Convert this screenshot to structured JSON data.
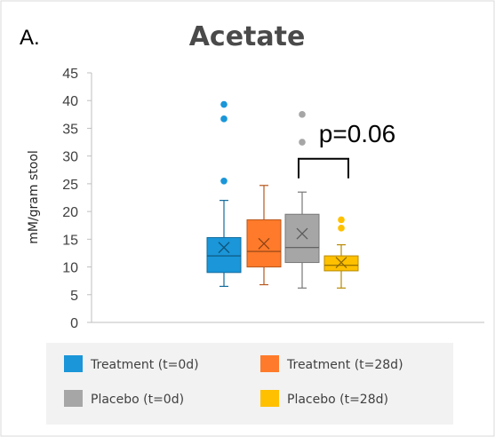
{
  "panel_label": "A.",
  "chart_data": {
    "type": "box",
    "title": "Acetate",
    "ylabel": "mM/gram stool",
    "xlabel": "",
    "ylim": [
      0,
      45
    ],
    "yticks": [
      0,
      5,
      10,
      15,
      20,
      25,
      30,
      35,
      40,
      45
    ],
    "grid": false,
    "legend_position": "bottom",
    "series": [
      {
        "name": "Treatment (t=0d)",
        "color": "#1a96d9",
        "min": 6.5,
        "q1": 9.0,
        "median": 12.0,
        "q3": 15.3,
        "max": 22.0,
        "mean": 13.5,
        "outliers": [
          39.3,
          36.7,
          25.5
        ]
      },
      {
        "name": "Treatment (t=28d)",
        "color": "#ff7a2a",
        "min": 6.8,
        "q1": 10.0,
        "median": 12.8,
        "q3": 18.5,
        "max": 24.7,
        "mean": 14.2,
        "outliers": []
      },
      {
        "name": "Placebo (t=0d)",
        "color": "#a6a6a6",
        "min": 6.2,
        "q1": 10.8,
        "median": 13.5,
        "q3": 19.5,
        "max": 23.5,
        "mean": 16.0,
        "outliers": [
          37.5,
          32.5
        ]
      },
      {
        "name": "Placebo (t=28d)",
        "color": "#ffc000",
        "min": 6.2,
        "q1": 9.3,
        "median": 10.3,
        "q3": 12.0,
        "max": 14.0,
        "mean": 10.8,
        "outliers": [
          18.5,
          17.0
        ]
      }
    ],
    "annotations": [
      {
        "text": "p=0.06",
        "between": [
          2,
          3
        ],
        "bracket_y": 29.5
      }
    ]
  }
}
